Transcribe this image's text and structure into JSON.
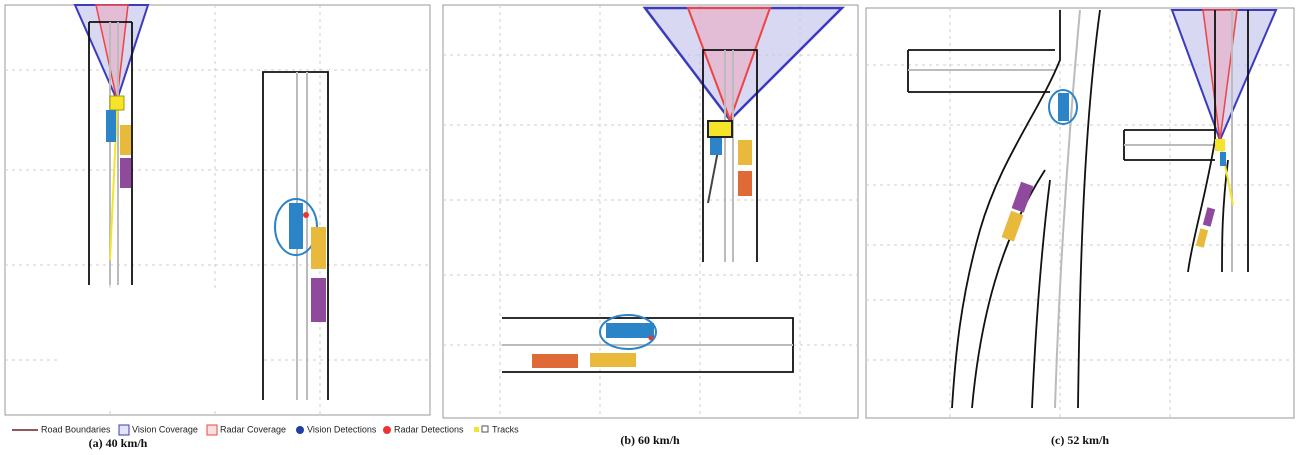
{
  "legend": {
    "items": [
      "Road Boundaries",
      "Vision Coverage",
      "Radar Coverage",
      "Vision Detections",
      "Radar Detections",
      "Tracks"
    ]
  },
  "captions": [
    "(a) 40 km/h",
    "(b) 60 km/h",
    "(c) 52 km/h"
  ]
}
